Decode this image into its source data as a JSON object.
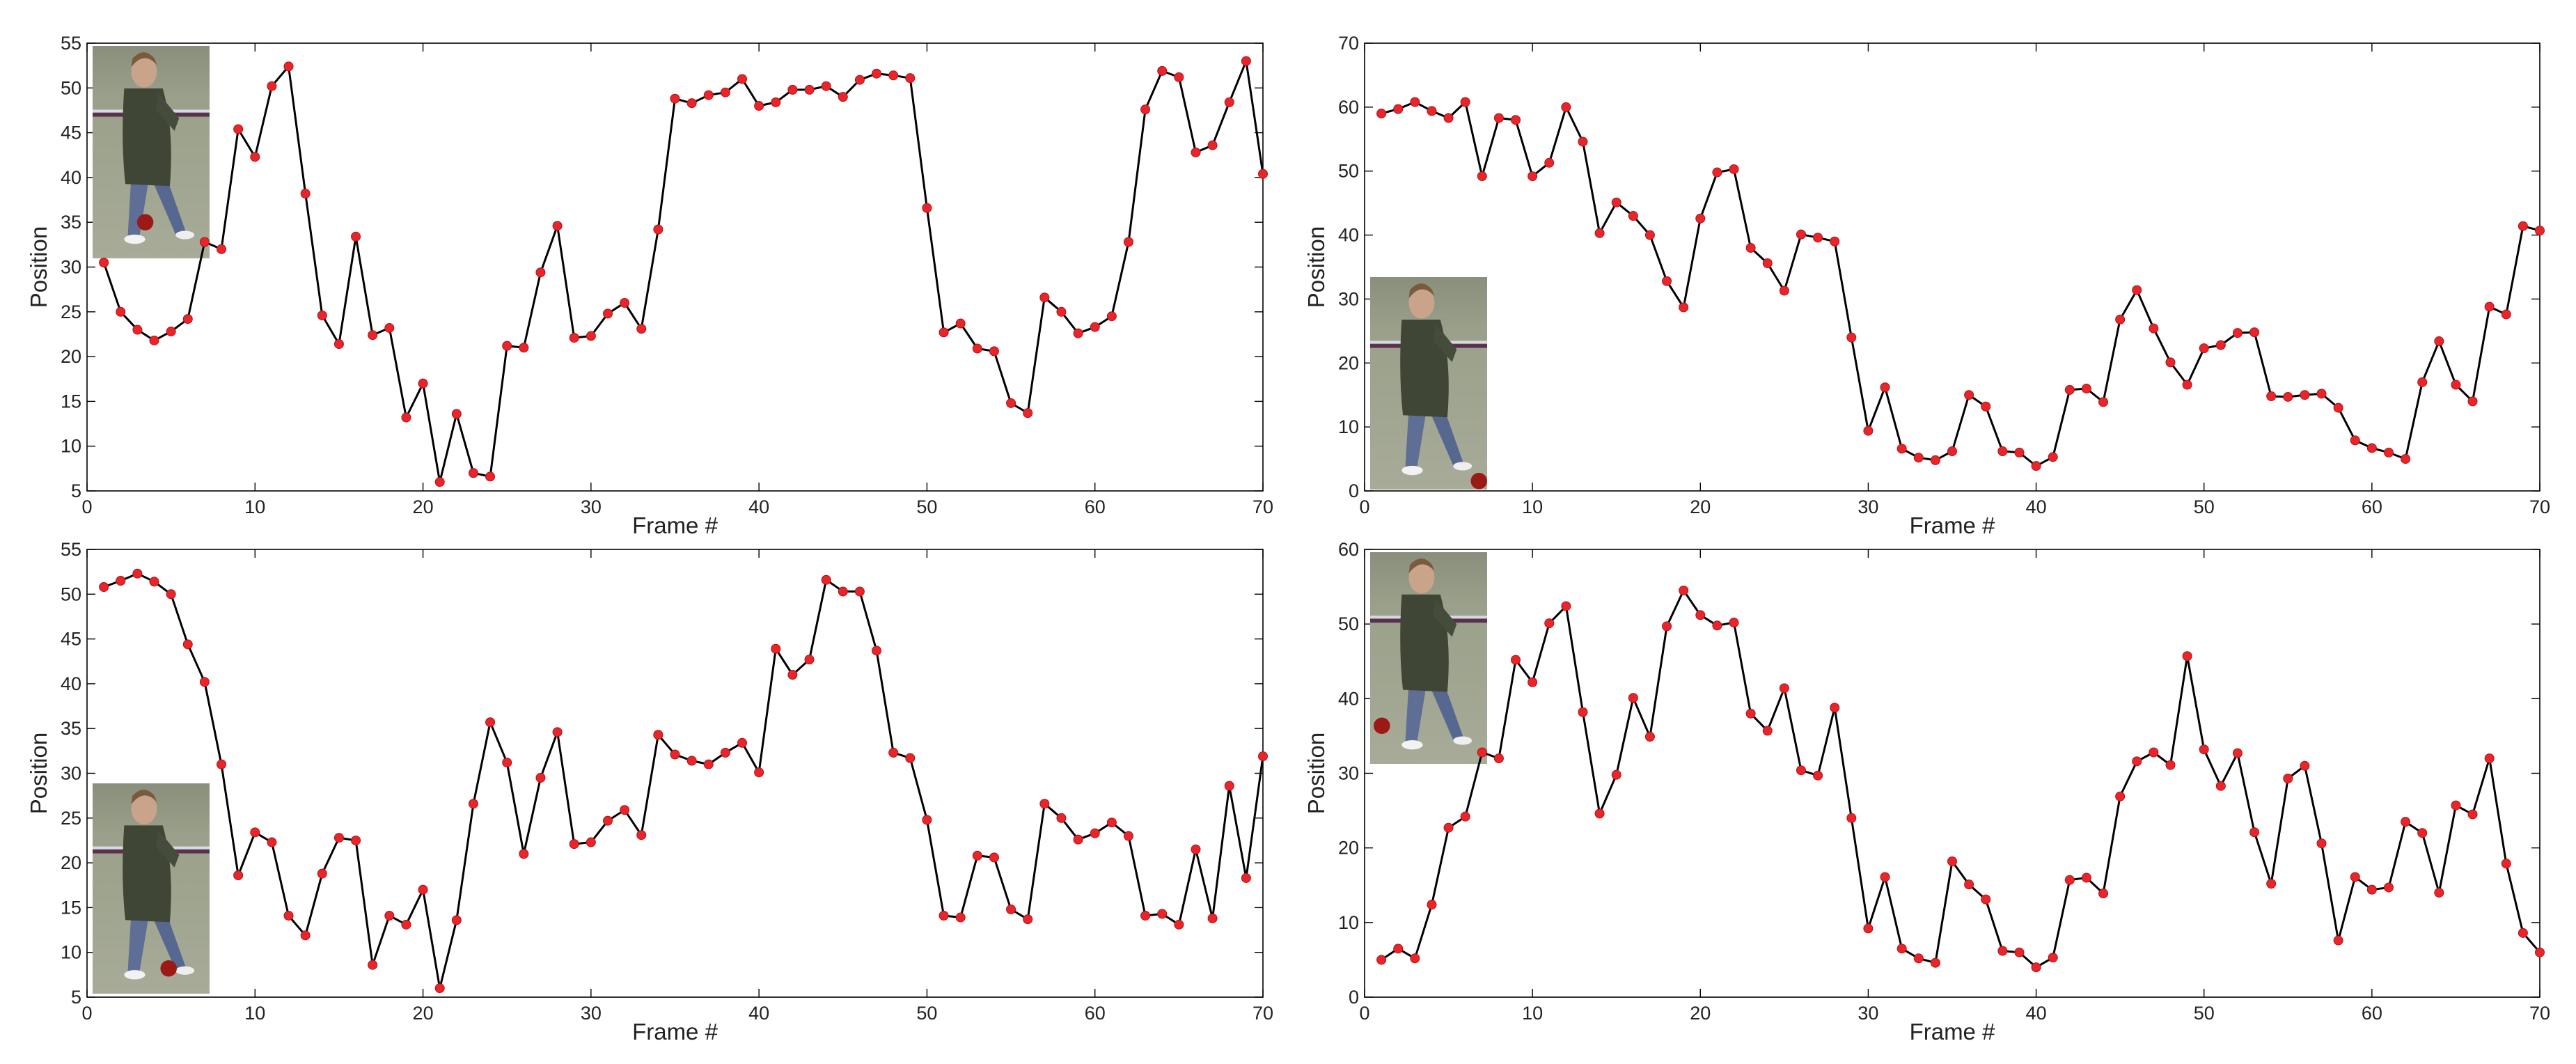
{
  "colors": {
    "line": "#000000",
    "marker": "#e8262a",
    "marker_edge": "#b01018",
    "axis": "#000000"
  },
  "chart_data": [
    {
      "type": "line",
      "xlabel": "Frame #",
      "ylabel": "Position",
      "xlim": [
        0,
        70
      ],
      "ylim": [
        5,
        55
      ],
      "xticks": [
        0,
        10,
        20,
        30,
        40,
        50,
        60,
        70
      ],
      "yticks": [
        5,
        10,
        15,
        20,
        25,
        30,
        35,
        40,
        45,
        50,
        55
      ],
      "grid": false,
      "inset": {
        "description": "pedestrian thumbnail",
        "placement": "top-left"
      },
      "series": [
        {
          "x": [
            1,
            2,
            3,
            4,
            5,
            6,
            7,
            8,
            9,
            10,
            11,
            12,
            13,
            14,
            15,
            16,
            17,
            18,
            19,
            20,
            21,
            22,
            23,
            24,
            25,
            26,
            27,
            28,
            29,
            30,
            31,
            32,
            33,
            34,
            35,
            36,
            37,
            38,
            39,
            40,
            41,
            42,
            43,
            44,
            45,
            46,
            47,
            48,
            49,
            50,
            51,
            52,
            53,
            54,
            55,
            56,
            57,
            58,
            59,
            60,
            61,
            62,
            63,
            64,
            65,
            66,
            67,
            68,
            69,
            70
          ],
          "values": [
            30.5,
            25,
            23,
            21.8,
            22.8,
            24.2,
            32.8,
            32,
            45.4,
            42.3,
            50.2,
            52.4,
            38.2,
            24.6,
            21.4,
            33.4,
            22.4,
            23.2,
            13.2,
            17,
            6,
            13.6,
            7,
            6.6,
            21.2,
            21,
            29.4,
            34.6,
            22.1,
            22.3,
            24.8,
            26,
            23.1,
            34.2,
            48.8,
            48.3,
            49.2,
            49.5,
            51,
            48,
            48.4,
            49.8,
            49.8,
            50.2,
            49,
            50.9,
            51.6,
            51.4,
            51.1,
            36.6,
            22.7,
            23.7,
            20.9,
            20.6,
            14.8,
            13.7,
            26.6,
            25,
            22.6,
            23.3,
            24.5,
            32.8,
            47.6,
            51.9,
            51.2,
            42.8,
            43.6,
            48.4,
            53,
            40.4
          ]
        }
      ]
    },
    {
      "type": "line",
      "xlabel": "Frame #",
      "ylabel": "Position",
      "xlim": [
        0,
        70
      ],
      "ylim": [
        0,
        70
      ],
      "xticks": [
        0,
        10,
        20,
        30,
        40,
        50,
        60,
        70
      ],
      "yticks": [
        0,
        10,
        20,
        30,
        40,
        50,
        60,
        70
      ],
      "grid": false,
      "inset": {
        "description": "pedestrian thumbnail",
        "placement": "left"
      },
      "series": [
        {
          "x": [
            1,
            2,
            3,
            4,
            5,
            6,
            7,
            8,
            9,
            10,
            11,
            12,
            13,
            14,
            15,
            16,
            17,
            18,
            19,
            20,
            21,
            22,
            23,
            24,
            25,
            26,
            27,
            28,
            29,
            30,
            31,
            32,
            33,
            34,
            35,
            36,
            37,
            38,
            39,
            40,
            41,
            42,
            43,
            44,
            45,
            46,
            47,
            48,
            49,
            50,
            51,
            52,
            53,
            54,
            55,
            56,
            57,
            58,
            59,
            60,
            61,
            62,
            63,
            64,
            65,
            66,
            67,
            68,
            69,
            70
          ],
          "values": [
            59,
            59.7,
            60.8,
            59.4,
            58.3,
            60.8,
            49.2,
            58.3,
            58,
            49.2,
            51.3,
            60,
            54.6,
            40.3,
            45.1,
            43,
            40,
            32.8,
            28.7,
            42.6,
            49.8,
            50.3,
            38,
            35.6,
            31.3,
            40.1,
            39.6,
            39,
            24,
            9.4,
            16.2,
            6.6,
            5.2,
            4.8,
            6.2,
            15,
            13.2,
            6.2,
            6,
            3.9,
            5.3,
            15.8,
            16,
            13.9,
            26.8,
            31.4,
            25.4,
            20.1,
            16.6,
            22.3,
            22.8,
            24.7,
            24.8,
            14.8,
            14.7,
            15,
            15.2,
            13,
            7.9,
            6.7,
            6,
            5,
            17,
            23.4,
            16.6,
            14,
            28.8,
            27.6,
            41.4,
            40.7
          ]
        }
      ]
    },
    {
      "type": "line",
      "xlabel": "Frame #",
      "ylabel": "Position",
      "xlim": [
        0,
        70
      ],
      "ylim": [
        5,
        55
      ],
      "xticks": [
        0,
        10,
        20,
        30,
        40,
        50,
        60,
        70
      ],
      "yticks": [
        5,
        10,
        15,
        20,
        25,
        30,
        35,
        40,
        45,
        50,
        55
      ],
      "grid": false,
      "inset": {
        "description": "pedestrian thumbnail",
        "placement": "bottom-left"
      },
      "series": [
        {
          "x": [
            1,
            2,
            3,
            4,
            5,
            6,
            7,
            8,
            9,
            10,
            11,
            12,
            13,
            14,
            15,
            16,
            17,
            18,
            19,
            20,
            21,
            22,
            23,
            24,
            25,
            26,
            27,
            28,
            29,
            30,
            31,
            32,
            33,
            34,
            35,
            36,
            37,
            38,
            39,
            40,
            41,
            42,
            43,
            44,
            45,
            46,
            47,
            48,
            49,
            50,
            51,
            52,
            53,
            54,
            55,
            56,
            57,
            58,
            59,
            60,
            61,
            62,
            63,
            64,
            65,
            66,
            67,
            68,
            69,
            70
          ],
          "values": [
            50.8,
            51.5,
            52.3,
            51.4,
            50,
            44.4,
            40.2,
            31,
            18.6,
            23.4,
            22.3,
            14.1,
            11.9,
            18.8,
            22.8,
            22.5,
            8.6,
            14.1,
            13.1,
            17,
            6,
            13.6,
            26.6,
            35.7,
            31.2,
            21,
            29.5,
            34.6,
            22.1,
            22.3,
            24.7,
            25.9,
            23.1,
            34.3,
            32.1,
            31.4,
            31,
            32.3,
            33.4,
            30.1,
            43.9,
            41,
            42.7,
            51.6,
            50.3,
            50.3,
            43.7,
            32.3,
            31.7,
            24.8,
            14.1,
            13.9,
            20.8,
            20.6,
            14.8,
            13.7,
            26.6,
            25,
            22.6,
            23.3,
            24.5,
            23,
            14.1,
            14.3,
            13.1,
            21.5,
            13.8,
            28.6,
            18.3,
            31.9
          ]
        }
      ]
    },
    {
      "type": "line",
      "xlabel": "Frame #",
      "ylabel": "Position",
      "xlim": [
        0,
        70
      ],
      "ylim": [
        0,
        60
      ],
      "xticks": [
        0,
        10,
        20,
        30,
        40,
        50,
        60,
        70
      ],
      "yticks": [
        0,
        10,
        20,
        30,
        40,
        50,
        60
      ],
      "grid": false,
      "inset": {
        "description": "pedestrian thumbnail",
        "placement": "top-left"
      },
      "series": [
        {
          "x": [
            1,
            2,
            3,
            4,
            5,
            6,
            7,
            8,
            9,
            10,
            11,
            12,
            13,
            14,
            15,
            16,
            17,
            18,
            19,
            20,
            21,
            22,
            23,
            24,
            25,
            26,
            27,
            28,
            29,
            30,
            31,
            32,
            33,
            34,
            35,
            36,
            37,
            38,
            39,
            40,
            41,
            42,
            43,
            44,
            45,
            46,
            47,
            48,
            49,
            50,
            51,
            52,
            53,
            54,
            55,
            56,
            57,
            58,
            59,
            60,
            61,
            62,
            63,
            64,
            65,
            66,
            67,
            68,
            69,
            70
          ],
          "values": [
            5,
            6.5,
            5.2,
            12.4,
            22.7,
            24.2,
            32.8,
            32,
            45.2,
            42.2,
            50.1,
            52.4,
            38.2,
            24.6,
            29.8,
            40.1,
            34.9,
            49.7,
            54.5,
            51.2,
            49.8,
            50.2,
            38,
            35.7,
            41.4,
            30.4,
            29.7,
            38.8,
            24,
            9.2,
            16.1,
            6.5,
            5.2,
            4.6,
            18.2,
            15.1,
            13.1,
            6.2,
            6,
            4,
            5.3,
            15.7,
            16,
            13.9,
            26.9,
            31.6,
            32.8,
            31.1,
            45.7,
            33.2,
            28.3,
            32.7,
            22.1,
            15.2,
            29.3,
            31,
            20.6,
            7.6,
            16.1,
            14.4,
            14.7,
            23.5,
            22,
            14,
            25.7,
            24.5,
            32,
            17.9,
            8.6,
            6
          ]
        }
      ]
    }
  ]
}
